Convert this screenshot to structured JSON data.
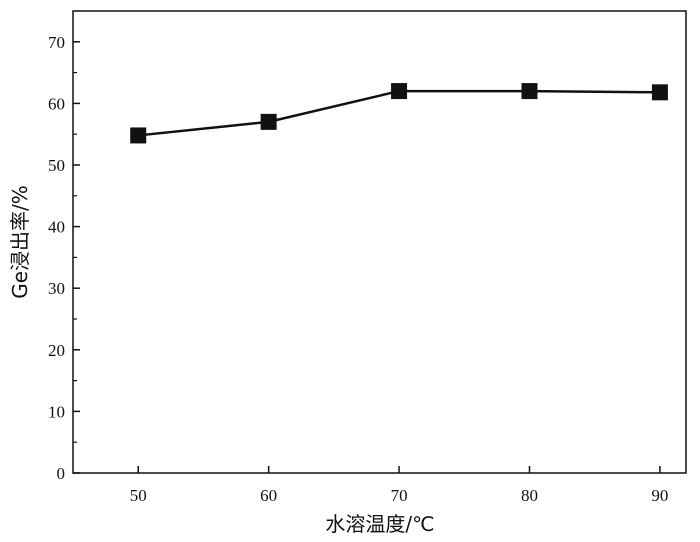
{
  "chart_data": {
    "type": "line",
    "title": "",
    "xlabel": "水溶温度/℃",
    "ylabel": "Ge浸出率/%",
    "x": [
      50,
      60,
      70,
      80,
      90
    ],
    "xticks": [
      "50",
      "60",
      "70",
      "80",
      "90"
    ],
    "xlim": [
      45,
      92
    ],
    "yticks": [
      "0",
      "10",
      "20",
      "30",
      "40",
      "50",
      "60",
      "70"
    ],
    "ylim": [
      0,
      75
    ],
    "series": [
      {
        "values": [
          54.8,
          57.0,
          62.0,
          62.0,
          61.8
        ],
        "marker": "square",
        "color": "#111111"
      }
    ],
    "grid": false,
    "legend": "none"
  }
}
